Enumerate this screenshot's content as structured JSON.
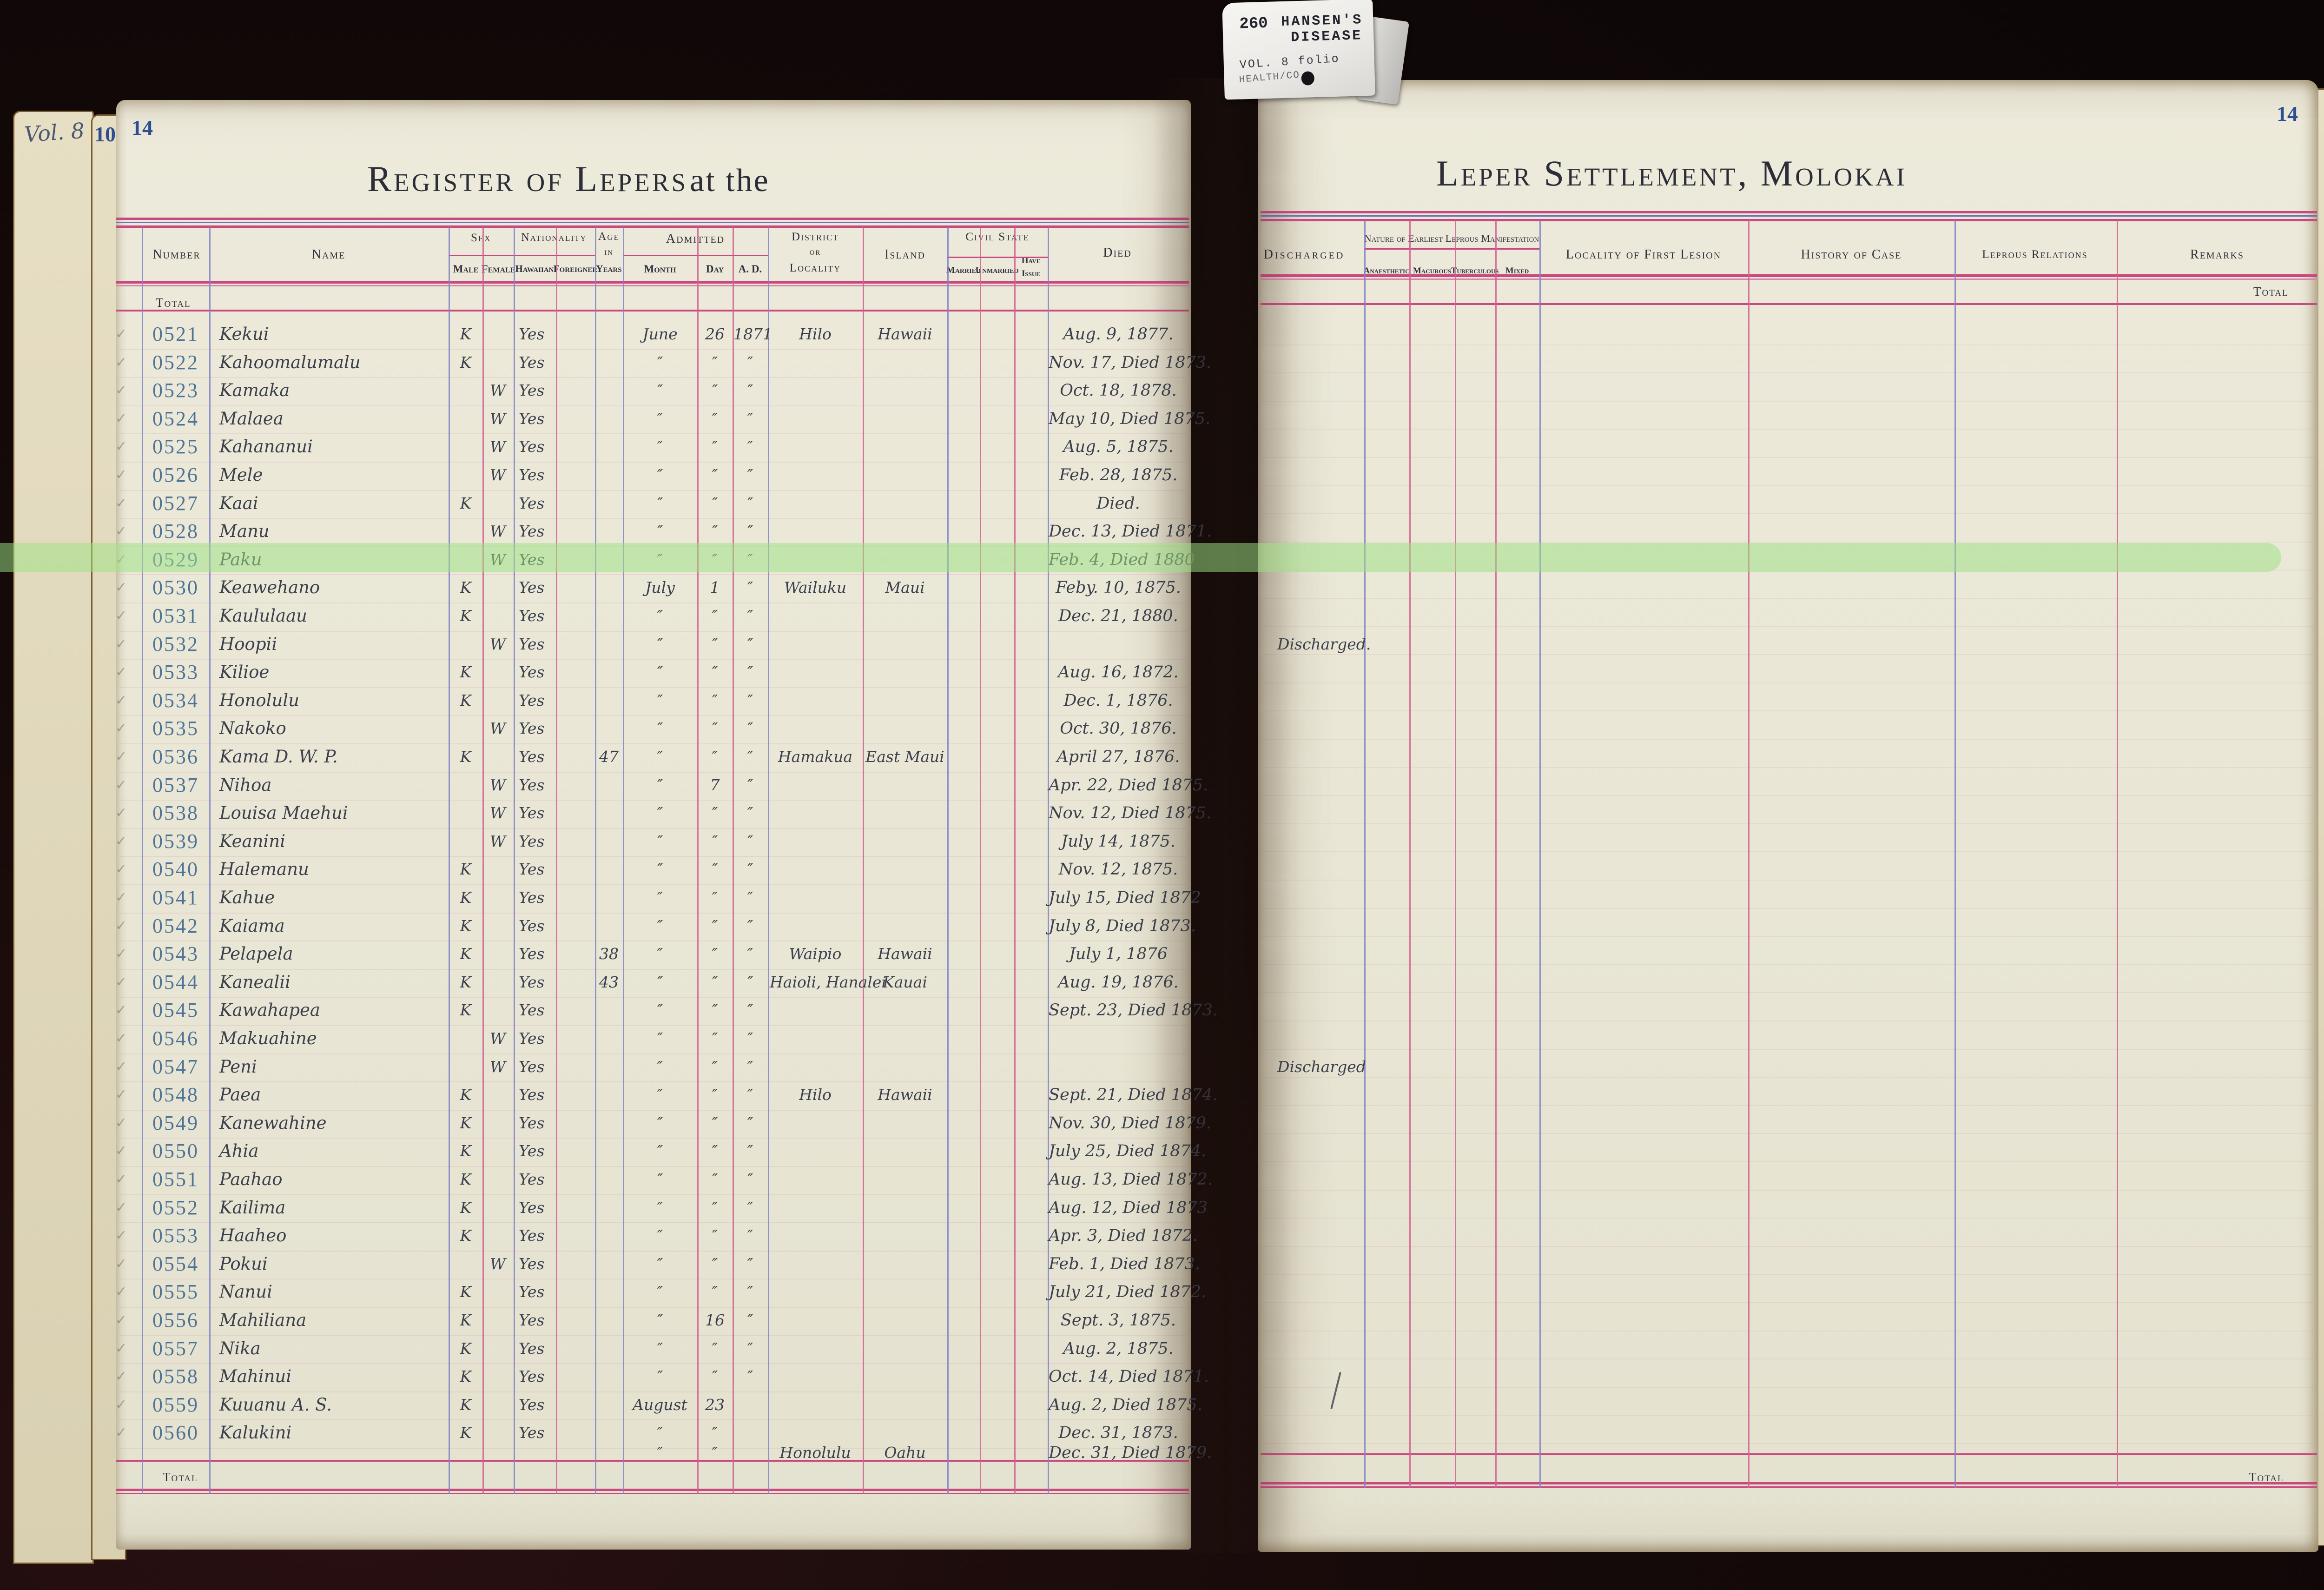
{
  "tab": {
    "code": "260",
    "disease1": "HANSEN'S",
    "disease2": "DISEASE",
    "volume": "VOL. 8 folio",
    "dept": "HEALTH/CO"
  },
  "book": {
    "volume": "Vol. 8",
    "underpage_number": "10",
    "left_page_number": "14",
    "right_page_number": "14",
    "total": "Total"
  },
  "titles": {
    "left_main": "Register of Lepers",
    "left_suffix": "at the",
    "right": "Leper Settlement, Molokai"
  },
  "headers": {
    "left": {
      "number": "Number",
      "name": "Name",
      "sex": "Sex",
      "male": "Male",
      "female": "Female",
      "nationality": "Nationality",
      "hawaiian": "Hawaiian",
      "foreigner": "Foreigner",
      "age1": "Age",
      "age2": "in",
      "age3": "Years",
      "admitted": "Admitted",
      "month": "Month",
      "day": "Day",
      "ad": "A. D.",
      "district1": "District",
      "district2": "or",
      "district3": "Locality",
      "island": "Island",
      "civil": "Civil State",
      "married": "Married",
      "unmarried": "Unmarried",
      "have1": "Have",
      "have2": "Issue",
      "died": "Died"
    },
    "right": {
      "discharged": "Discharged",
      "nature": "Nature of Earliest Leprous Manifestation",
      "anaesthetic": "Anaesthetic",
      "macurous": "Macurous",
      "tuberculous": "Tuberculous",
      "mixed": "Mixed",
      "locality": "Locality of First Lesion",
      "history": "History of Case",
      "relations": "Leprous Relations",
      "remarks": "Remarks"
    }
  },
  "highlight_color": "#9fdd8a",
  "colors": {
    "rule_pink": "#c9497f",
    "rule_blue": "#6d72b6",
    "col_purple": "#8184c4",
    "col_pink": "#d0618e",
    "ink": "#3c404c",
    "number_blue": "#4e7396",
    "page_cream": "#eae7d6"
  },
  "rows": [
    {
      "n": "0521",
      "name": "Kekui",
      "sex": "K",
      "yes": "Yes",
      "age": "",
      "m": "June",
      "d": "26",
      "y": "1871",
      "loc": "Hilo",
      "isl": "Hawaii",
      "died": "Aug. 9, 1877.",
      "dis": "",
      "check": true,
      "highlight": false
    },
    {
      "n": "0522",
      "name": "Kahoomalumalu",
      "sex": "K",
      "yes": "Yes",
      "age": "",
      "m": "″",
      "d": "″",
      "y": "″",
      "loc": "",
      "isl": "",
      "died": "Nov. 17, Died 1873.",
      "dis": "",
      "check": true,
      "highlight": false
    },
    {
      "n": "0523",
      "name": "Kamaka",
      "sex": "W",
      "yes": "Yes",
      "age": "",
      "m": "″",
      "d": "″",
      "y": "″",
      "loc": "",
      "isl": "",
      "died": "Oct. 18, 1878.",
      "dis": "",
      "check": true,
      "highlight": false
    },
    {
      "n": "0524",
      "name": "Malaea",
      "sex": "W",
      "yes": "Yes",
      "age": "",
      "m": "″",
      "d": "″",
      "y": "″",
      "loc": "",
      "isl": "",
      "died": "May 10, Died 1875.",
      "dis": "",
      "check": true,
      "highlight": false
    },
    {
      "n": "0525",
      "name": "Kahananui",
      "sex": "W",
      "yes": "Yes",
      "age": "",
      "m": "″",
      "d": "″",
      "y": "″",
      "loc": "",
      "isl": "",
      "died": "Aug. 5, 1875.",
      "dis": "",
      "check": true,
      "highlight": false
    },
    {
      "n": "0526",
      "name": "Mele",
      "sex": "W",
      "yes": "Yes",
      "age": "",
      "m": "″",
      "d": "″",
      "y": "″",
      "loc": "",
      "isl": "",
      "died": "Feb. 28, 1875.",
      "dis": "",
      "check": true,
      "highlight": false
    },
    {
      "n": "0527",
      "name": "Kaai",
      "sex": "K",
      "yes": "Yes",
      "age": "",
      "m": "″",
      "d": "″",
      "y": "″",
      "loc": "",
      "isl": "",
      "died": "Died.",
      "dis": "",
      "check": true,
      "highlight": false
    },
    {
      "n": "0528",
      "name": "Manu",
      "sex": "W",
      "yes": "Yes",
      "age": "",
      "m": "″",
      "d": "″",
      "y": "″",
      "loc": "",
      "isl": "",
      "died": "Dec. 13, Died 1871.",
      "dis": "",
      "check": true,
      "highlight": false
    },
    {
      "n": "0529",
      "name": "Paku",
      "sex": "W",
      "yes": "Yes",
      "age": "",
      "m": "″",
      "d": "″",
      "y": "″",
      "loc": "",
      "isl": "",
      "died": "Feb. 4, Died 1880",
      "dis": "",
      "check": true,
      "highlight": true
    },
    {
      "n": "0530",
      "name": "Keawehano",
      "sex": "K",
      "yes": "Yes",
      "age": "",
      "m": "July",
      "d": "1",
      "y": "″",
      "loc": "Wailuku",
      "isl": "Maui",
      "died": "Feby. 10, 1875.",
      "dis": "",
      "check": true,
      "highlight": false
    },
    {
      "n": "0531",
      "name": "Kaululaau",
      "sex": "K",
      "yes": "Yes",
      "age": "",
      "m": "″",
      "d": "″",
      "y": "″",
      "loc": "",
      "isl": "",
      "died": "Dec. 21, 1880.",
      "dis": "",
      "check": true,
      "highlight": false
    },
    {
      "n": "0532",
      "name": "Hoopii",
      "sex": "W",
      "yes": "Yes",
      "age": "",
      "m": "″",
      "d": "″",
      "y": "″",
      "loc": "",
      "isl": "",
      "died": "",
      "dis": "Discharged.",
      "check": true,
      "highlight": false
    },
    {
      "n": "0533",
      "name": "Kilioe",
      "sex": "K",
      "yes": "Yes",
      "age": "",
      "m": "″",
      "d": "″",
      "y": "″",
      "loc": "",
      "isl": "",
      "died": "Aug. 16, 1872.",
      "dis": "",
      "check": true,
      "highlight": false
    },
    {
      "n": "0534",
      "name": "Honolulu",
      "sex": "K",
      "yes": "Yes",
      "age": "",
      "m": "″",
      "d": "″",
      "y": "″",
      "loc": "",
      "isl": "",
      "died": "Dec. 1, 1876.",
      "dis": "",
      "check": true,
      "highlight": false
    },
    {
      "n": "0535",
      "name": "Nakoko",
      "sex": "W",
      "yes": "Yes",
      "age": "",
      "m": "″",
      "d": "″",
      "y": "″",
      "loc": "",
      "isl": "",
      "died": "Oct. 30, 1876.",
      "dis": "",
      "check": true,
      "highlight": false
    },
    {
      "n": "0536",
      "name": "Kama D. W. P.",
      "sex": "K",
      "yes": "Yes",
      "age": "47",
      "m": "″",
      "d": "″",
      "y": "″",
      "loc": "Hamakua",
      "isl": "East Maui",
      "died": "April 27, 1876.",
      "dis": "",
      "check": true,
      "highlight": false
    },
    {
      "n": "0537",
      "name": "Nihoa",
      "sex": "W",
      "yes": "Yes",
      "age": "",
      "m": "″",
      "d": "7",
      "y": "″",
      "loc": "",
      "isl": "",
      "died": "Apr. 22, Died 1875.",
      "dis": "",
      "check": true,
      "highlight": false
    },
    {
      "n": "0538",
      "name": "Louisa Maehui",
      "sex": "W",
      "yes": "Yes",
      "age": "",
      "m": "″",
      "d": "″",
      "y": "″",
      "loc": "",
      "isl": "",
      "died": "Nov. 12, Died 1875.",
      "dis": "",
      "check": true,
      "highlight": false
    },
    {
      "n": "0539",
      "name": "Keanini",
      "sex": "W",
      "yes": "Yes",
      "age": "",
      "m": "″",
      "d": "″",
      "y": "″",
      "loc": "",
      "isl": "",
      "died": "July 14, 1875.",
      "dis": "",
      "check": true,
      "highlight": false
    },
    {
      "n": "0540",
      "name": "Halemanu",
      "sex": "K",
      "yes": "Yes",
      "age": "",
      "m": "″",
      "d": "″",
      "y": "″",
      "loc": "",
      "isl": "",
      "died": "Nov. 12, 1875.",
      "dis": "",
      "check": true,
      "highlight": false
    },
    {
      "n": "0541",
      "name": "Kahue",
      "sex": "K",
      "yes": "Yes",
      "age": "",
      "m": "″",
      "d": "″",
      "y": "″",
      "loc": "",
      "isl": "",
      "died": "July 15, Died 1872",
      "dis": "",
      "check": true,
      "highlight": false
    },
    {
      "n": "0542",
      "name": "Kaiama",
      "sex": "K",
      "yes": "Yes",
      "age": "",
      "m": "″",
      "d": "″",
      "y": "″",
      "loc": "",
      "isl": "",
      "died": "July 8, Died 1873.",
      "dis": "",
      "check": true,
      "highlight": false
    },
    {
      "n": "0543",
      "name": "Pelapela",
      "sex": "K",
      "yes": "Yes",
      "age": "38",
      "m": "″",
      "d": "″",
      "y": "″",
      "loc": "Waipio",
      "isl": "Hawaii",
      "died": "July 1, 1876",
      "dis": "",
      "check": true,
      "highlight": false
    },
    {
      "n": "0544",
      "name": "Kanealii",
      "sex": "K",
      "yes": "Yes",
      "age": "43",
      "m": "″",
      "d": "″",
      "y": "″",
      "loc": "Haioli, Hanalei",
      "isl": "Kauai",
      "died": "Aug. 19, 1876.",
      "dis": "",
      "check": true,
      "highlight": false
    },
    {
      "n": "0545",
      "name": "Kawahapea",
      "sex": "K",
      "yes": "Yes",
      "age": "",
      "m": "″",
      "d": "″",
      "y": "″",
      "loc": "",
      "isl": "",
      "died": "Sept. 23, Died 1873.",
      "dis": "",
      "check": true,
      "highlight": false
    },
    {
      "n": "0546",
      "name": "Makuahine",
      "sex": "W",
      "yes": "Yes",
      "age": "",
      "m": "″",
      "d": "″",
      "y": "″",
      "loc": "",
      "isl": "",
      "died": "",
      "dis": "",
      "check": true,
      "highlight": false
    },
    {
      "n": "0547",
      "name": "Peni",
      "sex": "W",
      "yes": "Yes",
      "age": "",
      "m": "″",
      "d": "″",
      "y": "″",
      "loc": "",
      "isl": "",
      "died": "",
      "dis": "Discharged",
      "check": true,
      "highlight": false
    },
    {
      "n": "0548",
      "name": "Paea",
      "sex": "K",
      "yes": "Yes",
      "age": "",
      "m": "″",
      "d": "″",
      "y": "″",
      "loc": "Hilo",
      "isl": "Hawaii",
      "died": "Sept. 21, Died 1874.",
      "dis": "",
      "check": true,
      "highlight": false
    },
    {
      "n": "0549",
      "name": "Kanewahine",
      "sex": "K",
      "yes": "Yes",
      "age": "",
      "m": "″",
      "d": "″",
      "y": "″",
      "loc": "",
      "isl": "",
      "died": "Nov. 30, Died 1879.",
      "dis": "",
      "check": true,
      "highlight": false
    },
    {
      "n": "0550",
      "name": "Ahia",
      "sex": "K",
      "yes": "Yes",
      "age": "",
      "m": "″",
      "d": "″",
      "y": "″",
      "loc": "",
      "isl": "",
      "died": "July 25, Died 1874.",
      "dis": "",
      "check": true,
      "highlight": false
    },
    {
      "n": "0551",
      "name": "Paahao",
      "sex": "K",
      "yes": "Yes",
      "age": "",
      "m": "″",
      "d": "″",
      "y": "″",
      "loc": "",
      "isl": "",
      "died": "Aug. 13, Died 1872.",
      "dis": "",
      "check": true,
      "highlight": false
    },
    {
      "n": "0552",
      "name": "Kailima",
      "sex": "K",
      "yes": "Yes",
      "age": "",
      "m": "″",
      "d": "″",
      "y": "″",
      "loc": "",
      "isl": "",
      "died": "Aug. 12, Died 1873",
      "dis": "",
      "check": true,
      "highlight": false
    },
    {
      "n": "0553",
      "name": "Haaheo",
      "sex": "K",
      "yes": "Yes",
      "age": "",
      "m": "″",
      "d": "″",
      "y": "″",
      "loc": "",
      "isl": "",
      "died": "Apr. 3, Died 1872.",
      "dis": "",
      "check": true,
      "highlight": false
    },
    {
      "n": "0554",
      "name": "Pokui",
      "sex": "W",
      "yes": "Yes",
      "age": "",
      "m": "″",
      "d": "″",
      "y": "″",
      "loc": "",
      "isl": "",
      "died": "Feb. 1, Died 1873.",
      "dis": "",
      "check": true,
      "highlight": false
    },
    {
      "n": "0555",
      "name": "Nanui",
      "sex": "K",
      "yes": "Yes",
      "age": "",
      "m": "″",
      "d": "″",
      "y": "″",
      "loc": "",
      "isl": "",
      "died": "July 21, Died 1872.",
      "dis": "",
      "check": true,
      "highlight": false
    },
    {
      "n": "0556",
      "name": "Mahiliana",
      "sex": "K",
      "yes": "Yes",
      "age": "",
      "m": "″",
      "d": "16",
      "y": "″",
      "loc": "",
      "isl": "",
      "died": "Sept. 3, 1875.",
      "dis": "",
      "check": true,
      "highlight": false
    },
    {
      "n": "0557",
      "name": "Nika",
      "sex": "K",
      "yes": "Yes",
      "age": "",
      "m": "″",
      "d": "″",
      "y": "″",
      "loc": "",
      "isl": "",
      "died": "Aug. 2, 1875.",
      "dis": "",
      "check": true,
      "highlight": false
    },
    {
      "n": "0558",
      "name": "Mahinui",
      "sex": "K",
      "yes": "Yes",
      "age": "",
      "m": "″",
      "d": "″",
      "y": "″",
      "loc": "",
      "isl": "",
      "died": "Oct. 14, Died 1871.",
      "dis": "",
      "check": true,
      "highlight": false
    },
    {
      "n": "0559",
      "name": "Kuuanu A. S.",
      "sex": "K",
      "yes": "Yes",
      "age": "",
      "m": "August",
      "d": "23",
      "y": "",
      "loc": "",
      "isl": "",
      "died": "Aug. 2, Died 1875.",
      "dis": "",
      "check": true,
      "highlight": false
    },
    {
      "n": "0560",
      "name": "Kalukini",
      "sex": "K",
      "yes": "Yes",
      "age": "",
      "m": "″",
      "d": "″",
      "y": "",
      "loc": "",
      "isl": "",
      "died": "Dec. 31, 1873.",
      "dis": "",
      "check": true,
      "highlight": false
    }
  ],
  "extra_line": {
    "m": "″",
    "d": "″",
    "loc": "Honolulu",
    "isl": "Oahu",
    "died": "Dec. 31, Died 1879."
  }
}
